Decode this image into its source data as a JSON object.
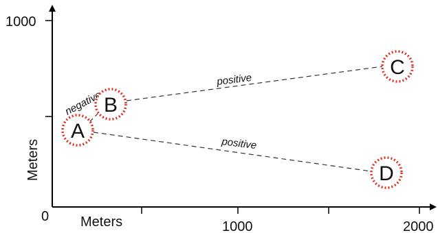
{
  "axes": {
    "x_title": "Meters",
    "y_title": "Meters",
    "origin_label": "0",
    "x_tick_labels": [
      "1000",
      "2000"
    ],
    "y_tick_labels": [
      "1000"
    ]
  },
  "nodes": [
    {
      "id": "A",
      "label": "A"
    },
    {
      "id": "B",
      "label": "B"
    },
    {
      "id": "C",
      "label": "C"
    },
    {
      "id": "D",
      "label": "D"
    }
  ],
  "edges": [
    {
      "from": "A",
      "to": "B",
      "label": "negative"
    },
    {
      "from": "B",
      "to": "C",
      "label": "positive"
    },
    {
      "from": "A",
      "to": "D",
      "label": "positive"
    }
  ],
  "colors": {
    "axis": "#000000",
    "edge": "#333333",
    "node_outline": "#e0301e"
  }
}
